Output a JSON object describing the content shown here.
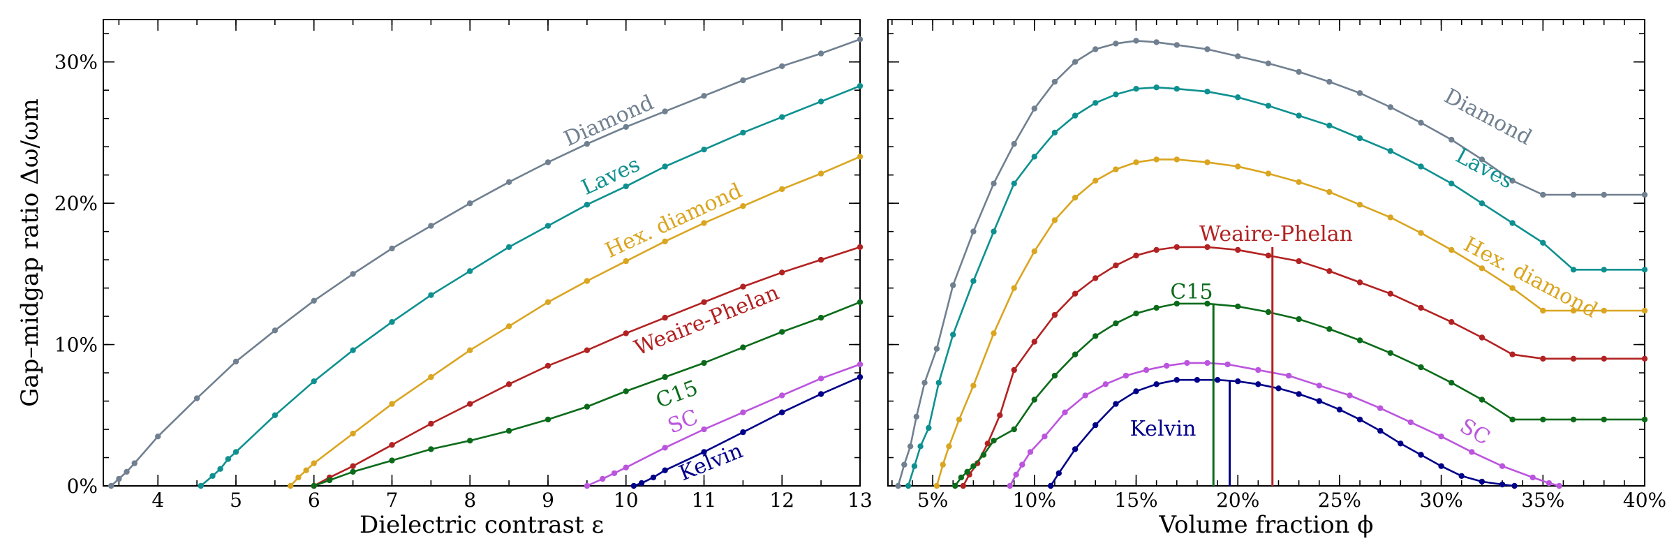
{
  "chart_data": [
    {
      "type": "line",
      "xlabel": "Dielectric contrast ε",
      "ylabel": "Gap–midgap ratio Δω/ωm",
      "xlim": [
        3.3,
        13
      ],
      "ylim": [
        0,
        33
      ],
      "x_ticks": [
        4,
        5,
        6,
        7,
        8,
        9,
        10,
        11,
        12,
        13
      ],
      "x_tick_labels": [
        "4",
        "5",
        "6",
        "7",
        "8",
        "9",
        "10",
        "11",
        "12",
        "13"
      ],
      "y_ticks": [
        0,
        10,
        20,
        30
      ],
      "y_tick_labels": [
        "0%",
        "10%",
        "20%",
        "30%"
      ],
      "grid": false,
      "series": [
        {
          "name": "Diamond",
          "color": "#708090",
          "x": [
            3.4,
            3.5,
            3.6,
            3.7,
            4,
            4.5,
            5,
            5.5,
            6,
            6.5,
            7,
            7.5,
            8,
            8.5,
            9,
            9.5,
            10,
            10.5,
            11,
            11.5,
            12,
            12.5,
            13
          ],
          "y": [
            0,
            0.5,
            1,
            1.6,
            3.5,
            6.2,
            8.8,
            11,
            13.1,
            15,
            16.8,
            18.4,
            20,
            21.5,
            22.9,
            24.2,
            25.4,
            26.5,
            27.6,
            28.7,
            29.7,
            30.6,
            31.6
          ]
        },
        {
          "name": "Laves",
          "color": "#0e9090",
          "x": [
            4.55,
            4.7,
            4.8,
            4.9,
            5,
            5.5,
            6,
            6.5,
            7,
            7.5,
            8,
            8.5,
            9,
            9.5,
            10,
            10.5,
            11,
            11.5,
            12,
            12.5,
            13
          ],
          "y": [
            0,
            0.7,
            1.2,
            1.9,
            2.4,
            5,
            7.4,
            9.6,
            11.6,
            13.5,
            15.2,
            16.9,
            18.4,
            19.9,
            21.2,
            22.6,
            23.8,
            25,
            26.1,
            27.2,
            28.3
          ]
        },
        {
          "name": "Hex. diamond",
          "color": "#daa520",
          "x": [
            5.7,
            5.8,
            5.9,
            6,
            6.5,
            7,
            7.5,
            8,
            8.5,
            9,
            9.5,
            10,
            10.5,
            11,
            11.5,
            12,
            12.5,
            13
          ],
          "y": [
            0,
            0.6,
            1.1,
            1.6,
            3.7,
            5.8,
            7.7,
            9.6,
            11.3,
            13,
            14.5,
            15.9,
            17.3,
            18.6,
            19.8,
            21,
            22.1,
            23.3
          ]
        },
        {
          "name": "Weaire-Phelan",
          "color": "#b22222",
          "x": [
            6,
            6.2,
            6.5,
            7,
            7.5,
            8,
            8.5,
            9,
            9.5,
            10,
            10.5,
            11,
            11.5,
            12,
            12.5,
            13
          ],
          "y": [
            0,
            0.6,
            1.4,
            2.9,
            4.4,
            5.8,
            7.2,
            8.5,
            9.6,
            10.8,
            11.9,
            13,
            14.1,
            15.1,
            16,
            16.9
          ]
        },
        {
          "name": "C15",
          "color": "#0b6b1a",
          "x": [
            6,
            6.2,
            6.5,
            7,
            7.5,
            8,
            8.5,
            9,
            9.5,
            10,
            10.5,
            11,
            11.5,
            12,
            12.5,
            13
          ],
          "y": [
            0,
            0.4,
            1,
            1.8,
            2.6,
            3.2,
            3.9,
            4.7,
            5.6,
            6.7,
            7.7,
            8.7,
            9.8,
            10.9,
            11.9,
            13
          ]
        },
        {
          "name": "SC",
          "color": "#bb55dd",
          "x": [
            9.5,
            9.7,
            9.85,
            10,
            10.5,
            11,
            11.5,
            12,
            12.5,
            13
          ],
          "y": [
            0,
            0.5,
            0.9,
            1.3,
            2.7,
            4,
            5.2,
            6.4,
            7.6,
            8.6
          ]
        },
        {
          "name": "Kelvin",
          "color": "#000088",
          "x": [
            10.1,
            10.2,
            10.35,
            10.5,
            11,
            11.5,
            12,
            12.5,
            13
          ],
          "y": [
            0,
            0.2,
            0.6,
            1.1,
            2.4,
            3.8,
            5.2,
            6.5,
            7.7
          ]
        }
      ]
    },
    {
      "type": "line",
      "xlabel": "Volume fraction ϕ",
      "ylabel": "",
      "xlim": [
        2.8,
        40
      ],
      "ylim": [
        0,
        33
      ],
      "x_ticks": [
        5,
        10,
        15,
        20,
        25,
        30,
        35,
        40
      ],
      "x_tick_labels": [
        "5%",
        "10%",
        "15%",
        "20%",
        "25%",
        "30%",
        "35%",
        "40%"
      ],
      "y_ticks": [
        0,
        10,
        20,
        30
      ],
      "y_tick_labels": [
        "",
        "",
        "",
        ""
      ],
      "grid": false,
      "series": [
        {
          "name": "Diamond",
          "color": "#708090",
          "x": [
            3.3,
            3.6,
            3.9,
            4.2,
            4.6,
            5.2,
            6,
            7,
            8,
            9,
            10,
            11,
            12,
            13,
            14,
            15,
            16,
            17,
            18.5,
            20,
            21.5,
            23,
            24.5,
            26,
            27.5,
            29,
            30.5,
            32,
            33.5,
            35,
            36.5,
            38,
            40
          ],
          "y": [
            0,
            1.5,
            2.8,
            4.9,
            7.3,
            9.7,
            14.2,
            18,
            21.4,
            24.2,
            26.7,
            28.6,
            30,
            30.9,
            31.3,
            31.5,
            31.4,
            31.2,
            30.9,
            30.4,
            29.9,
            29.3,
            28.6,
            27.8,
            26.8,
            25.7,
            24.5,
            23.1,
            21.6,
            20.6,
            20.6,
            20.6,
            20.6
          ]
        },
        {
          "name": "Laves",
          "color": "#0e9090",
          "x": [
            3.8,
            4.1,
            4.4,
            4.8,
            5.3,
            6,
            7,
            8,
            9,
            10,
            11,
            12,
            13,
            14,
            15,
            16,
            17,
            18.5,
            20,
            21.5,
            23,
            24.5,
            26,
            27.5,
            29,
            30.5,
            32,
            33.5,
            35,
            36.5,
            38,
            40
          ],
          "y": [
            0,
            1.4,
            2.8,
            4.1,
            7.3,
            10.7,
            14.5,
            18,
            21.4,
            23.3,
            25,
            26.2,
            27.1,
            27.7,
            28.1,
            28.2,
            28.1,
            27.9,
            27.5,
            26.9,
            26.2,
            25.5,
            24.6,
            23.7,
            22.6,
            21.4,
            20,
            18.6,
            17.2,
            15.3,
            15.3,
            15.3
          ]
        },
        {
          "name": "Hex. diamond",
          "color": "#daa520",
          "x": [
            5.2,
            5.5,
            5.8,
            6.3,
            7,
            8,
            9,
            10,
            11,
            12,
            13,
            14,
            15,
            16,
            17,
            18.5,
            20,
            21.5,
            23,
            24.5,
            26,
            27.5,
            29,
            30.5,
            32,
            33.5,
            35,
            36.5,
            38,
            40
          ],
          "y": [
            0,
            1.5,
            2.8,
            4.7,
            7.1,
            10.8,
            14,
            16.6,
            18.8,
            20.4,
            21.6,
            22.4,
            22.9,
            23.1,
            23.1,
            22.9,
            22.6,
            22.1,
            21.5,
            20.8,
            19.9,
            19,
            17.9,
            16.7,
            15.4,
            14,
            12.4,
            12.4,
            12.4,
            12.4
          ]
        },
        {
          "name": "Weaire-Phelan",
          "color": "#b22222",
          "x": [
            6.5,
            6.8,
            7.2,
            7.7,
            8.3,
            9,
            10,
            11,
            12,
            13,
            14,
            15,
            16,
            17,
            18.5,
            20,
            21.5,
            23,
            24.5,
            26,
            27.5,
            29,
            30.5,
            32,
            33.5,
            35,
            36.5,
            38,
            40
          ],
          "y": [
            0,
            0.8,
            1.6,
            3,
            5,
            8.2,
            10.2,
            12.1,
            13.6,
            14.7,
            15.6,
            16.3,
            16.7,
            16.9,
            16.9,
            16.7,
            16.3,
            15.9,
            15.2,
            14.4,
            13.6,
            12.6,
            11.6,
            10.5,
            9.3,
            9,
            9,
            9,
            9
          ]
        },
        {
          "name": "C15",
          "color": "#0b6b1a",
          "x": [
            6.1,
            6.4,
            6.7,
            7,
            7.5,
            8,
            9,
            10,
            11,
            12,
            13,
            14,
            15,
            16,
            17,
            18.5,
            20,
            21.5,
            23,
            24.5,
            26,
            27.5,
            29,
            30.5,
            32,
            33.5,
            35,
            36.5,
            38,
            40
          ],
          "y": [
            0,
            0.6,
            1,
            1.4,
            2.2,
            3.2,
            4,
            6.1,
            7.8,
            9.3,
            10.6,
            11.5,
            12.2,
            12.6,
            12.9,
            12.9,
            12.7,
            12.3,
            11.8,
            11.1,
            10.3,
            9.4,
            8.4,
            7.3,
            6.1,
            4.7,
            4.7,
            4.7,
            4.7,
            4.7
          ]
        },
        {
          "name": "SC",
          "color": "#bb55dd",
          "x": [
            8.8,
            9.1,
            9.4,
            9.8,
            10.5,
            11.5,
            12.5,
            13.5,
            14.5,
            15.5,
            16.5,
            17.5,
            18.5,
            19.5,
            21,
            22.5,
            24,
            25.5,
            27,
            28.5,
            30,
            31.5,
            33,
            34.5,
            35.3,
            35.8
          ],
          "y": [
            0,
            0.8,
            1.5,
            2.4,
            3.5,
            5.2,
            6.4,
            7.2,
            7.8,
            8.2,
            8.5,
            8.7,
            8.7,
            8.6,
            8.2,
            7.8,
            7.1,
            6.4,
            5.5,
            4.5,
            3.5,
            2.4,
            1.4,
            0.6,
            0.2,
            0
          ]
        },
        {
          "name": "Kelvin",
          "color": "#000088",
          "x": [
            10.8,
            11.2,
            12,
            13,
            14,
            15,
            16,
            17,
            18,
            19,
            20,
            21,
            22,
            23,
            24,
            25,
            26,
            27,
            28,
            29,
            30,
            31,
            32,
            33,
            33.6
          ],
          "y": [
            0,
            0.9,
            2.6,
            4.3,
            5.8,
            6.7,
            7.2,
            7.5,
            7.5,
            7.5,
            7.4,
            7.2,
            6.9,
            6.5,
            6,
            5.4,
            4.7,
            3.9,
            3,
            2.2,
            1.4,
            0.7,
            0.3,
            0.1,
            0
          ]
        }
      ],
      "markers": [
        {
          "series": "Weaire-Phelan",
          "x": 21.7,
          "y": 16.9
        },
        {
          "series": "C15",
          "x": 18.8,
          "y": 12.9
        },
        {
          "series": "Kelvin",
          "x": 19.6,
          "y": 7.5
        }
      ]
    }
  ]
}
